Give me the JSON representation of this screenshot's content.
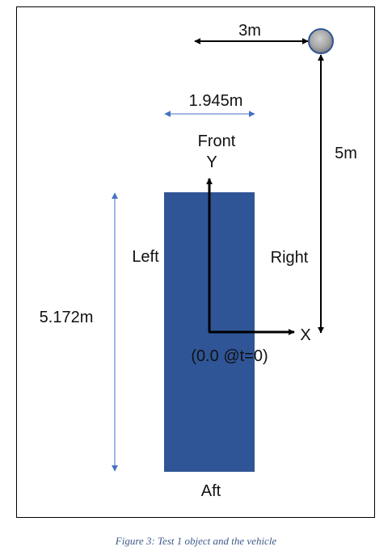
{
  "labels": {
    "distance_x": "3m",
    "width": "1.945m",
    "front": "Front",
    "y_axis": "Y",
    "distance_y": "5m",
    "left": "Left",
    "right": "Right",
    "length": "5.172m",
    "x_axis": "X",
    "origin": "(0.0 @t=0)",
    "aft": "Aft"
  },
  "caption": "Figure 3: Test 1 object and the vehicle",
  "colors": {
    "vehicle": "#2f5597",
    "dimension_line": "#4472c4",
    "axis": "#000000",
    "object": "#9a9a9a"
  }
}
